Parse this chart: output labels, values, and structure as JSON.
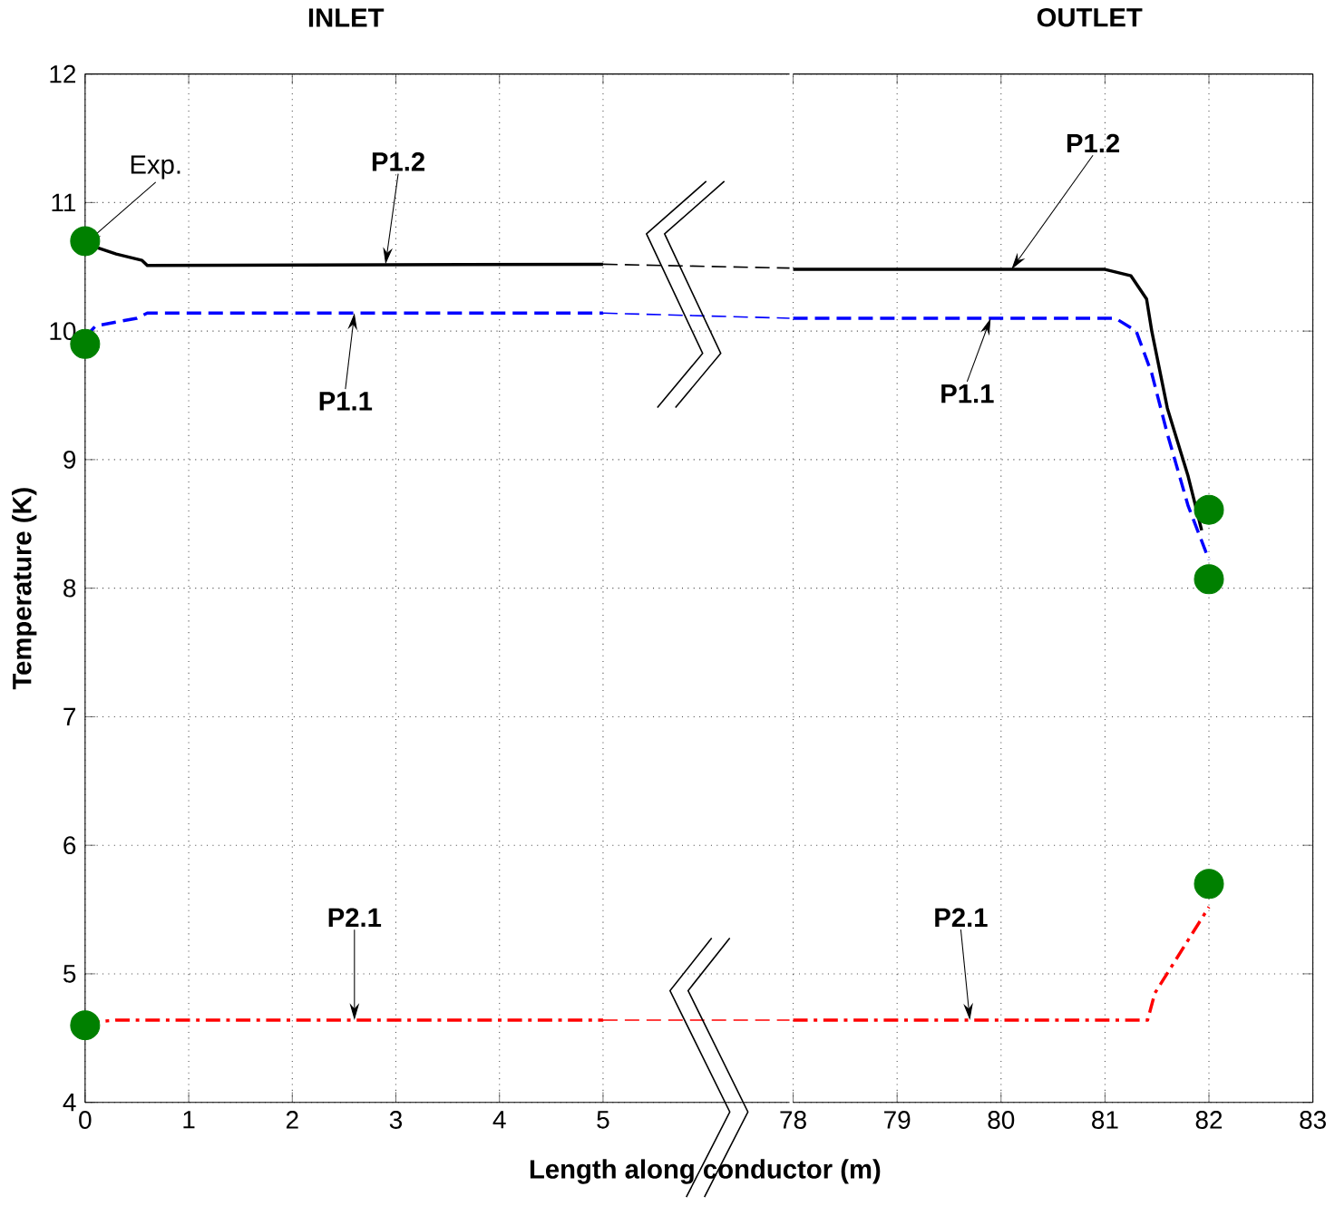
{
  "chart_data": [
    {
      "type": "line",
      "title": "INLET",
      "xlabel": "Length along conductor (m)",
      "ylabel": "Temperature (K)",
      "xlim": [
        0,
        6.8
      ],
      "xticks": [
        0,
        1,
        2,
        3,
        4,
        5
      ],
      "ylim": [
        4,
        12
      ],
      "yticks": [
        4,
        5,
        6,
        7,
        8,
        9,
        10,
        11,
        12
      ],
      "grid": true,
      "series": [
        {
          "color": "#000000",
          "line_style": "solid",
          "x": [
            0,
            0.3,
            0.55,
            0.6,
            5
          ],
          "values": [
            10.68,
            10.6,
            10.55,
            10.51,
            10.52
          ]
        },
        {
          "color": "#0000ff",
          "line_style": "dashed",
          "x": [
            0,
            0.1,
            0.5,
            0.6,
            5
          ],
          "values": [
            9.95,
            10.04,
            10.1,
            10.14,
            10.14
          ]
        },
        {
          "color": "#ff0000",
          "line_style": "dashdot",
          "x": [
            0,
            0.3,
            5
          ],
          "values": [
            4.62,
            4.64,
            4.64
          ]
        },
        {
          "color": "#000000",
          "line_style": "dashed",
          "x": [
            5,
            6.8
          ],
          "values": [
            10.52,
            10.49
          ]
        },
        {
          "color": "#0000ff",
          "line_style": "dashed",
          "x": [
            5,
            6.8
          ],
          "values": [
            10.14,
            10.1
          ]
        },
        {
          "color": "#ff0000",
          "line_style": "dashed",
          "x": [
            5,
            6.8
          ],
          "values": [
            4.64,
            4.64
          ]
        },
        {
          "type": "scatter",
          "color": "#008000",
          "marker": "circle",
          "x": [
            0,
            0,
            0
          ],
          "values": [
            10.7,
            9.9,
            4.6
          ]
        }
      ],
      "annotations": [
        {
          "text": "Exp.",
          "x": 0,
          "y": 10.68
        },
        {
          "text": "P1.2",
          "x": 2.9,
          "y": 10.52
        },
        {
          "text": "P1.1",
          "x": 2.6,
          "y": 10.14
        },
        {
          "text": "P2.1",
          "x": 2.6,
          "y": 4.64
        }
      ]
    },
    {
      "type": "line",
      "title": "OUTLET",
      "xlim": [
        78,
        83
      ],
      "xticks": [
        78,
        79,
        80,
        81,
        82,
        83
      ],
      "ylim": [
        4,
        12
      ],
      "yticks": [
        4,
        5,
        6,
        7,
        8,
        9,
        10,
        11,
        12
      ],
      "grid": true,
      "tick_labels": "x",
      "series": [
        {
          "color": "#000000",
          "line_style": "solid",
          "x": [
            78,
            81,
            81.25,
            81.4,
            81.45,
            81.6,
            81.8,
            81.93
          ],
          "values": [
            10.48,
            10.48,
            10.43,
            10.25,
            10.0,
            9.4,
            8.87,
            8.45
          ]
        },
        {
          "color": "#0000ff",
          "line_style": "dashed",
          "x": [
            78,
            81.1,
            81.3,
            81.45,
            81.6,
            81.8,
            82
          ],
          "values": [
            10.1,
            10.1,
            10.0,
            9.67,
            9.2,
            8.64,
            8.22
          ]
        },
        {
          "color": "#ff0000",
          "line_style": "dashdot",
          "x": [
            78,
            81.41,
            81.48,
            82
          ],
          "values": [
            4.64,
            4.64,
            4.85,
            5.52
          ]
        },
        {
          "type": "scatter",
          "color": "#008000",
          "marker": "circle",
          "x": [
            82,
            82,
            82
          ],
          "values": [
            8.61,
            8.07,
            5.7
          ]
        }
      ],
      "annotations": [
        {
          "text": "P1.2",
          "x": 80.1,
          "y": 10.48
        },
        {
          "text": "P1.1",
          "x": 79.9,
          "y": 10.1
        },
        {
          "text": "P2.1",
          "x": 79.7,
          "y": 4.64
        }
      ]
    }
  ]
}
